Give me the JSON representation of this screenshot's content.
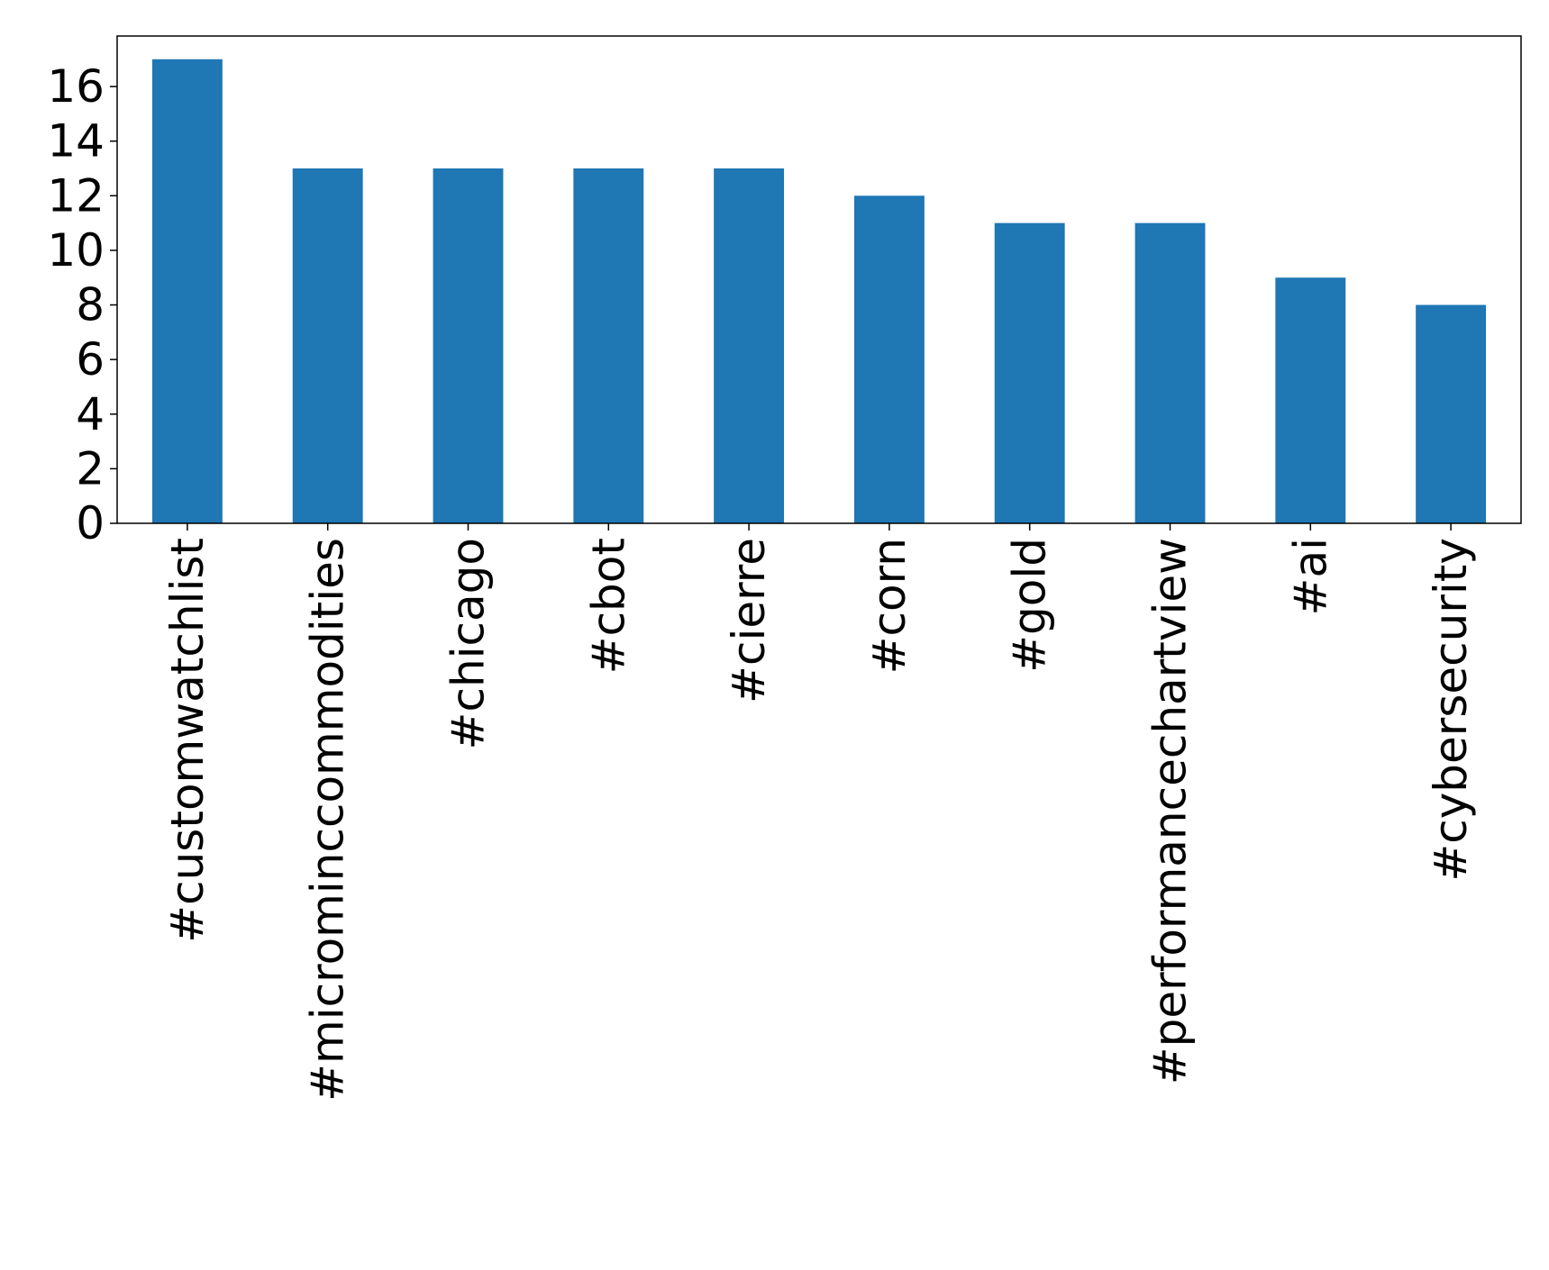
{
  "chart_data": {
    "type": "bar",
    "categories": [
      "#customwatchlist",
      "#microminccommodities",
      "#chicago",
      "#cbot",
      "#cierre",
      "#corn",
      "#gold",
      "#performancechartview",
      "#ai",
      "#cybersecurity"
    ],
    "values": [
      17,
      13,
      13,
      13,
      13,
      12,
      11,
      11,
      9,
      8
    ],
    "yticks": [
      "0",
      "2",
      "4",
      "6",
      "8",
      "10",
      "12",
      "14",
      "16"
    ],
    "ylim": [
      0,
      17.85
    ],
    "grid": false,
    "legend": "none",
    "bar_color": "#1f77b4"
  }
}
